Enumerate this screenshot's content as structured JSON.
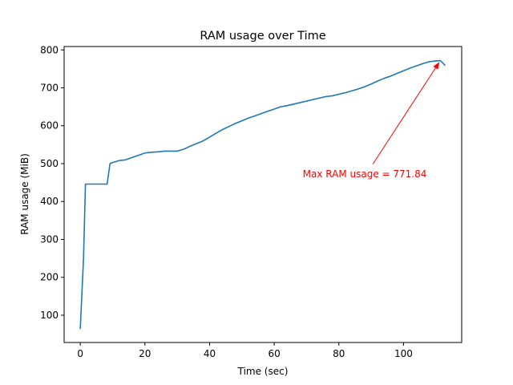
{
  "chart_data": {
    "type": "line",
    "title": "RAM usage over Time",
    "xlabel": "Time (sec)",
    "ylabel": "RAM usage (MiB)",
    "xlim": [
      -5,
      118
    ],
    "ylim": [
      28,
      809
    ],
    "x_ticks": [
      0,
      20,
      40,
      60,
      80,
      100
    ],
    "y_ticks": [
      100,
      200,
      300,
      400,
      500,
      600,
      700,
      800
    ],
    "grid": false,
    "series": [
      {
        "color": "#1f77b4",
        "x": [
          0,
          1,
          1.6,
          3,
          5,
          7,
          8.3,
          9.2,
          10,
          12,
          14,
          16,
          18,
          20,
          22,
          24,
          26,
          28,
          30,
          32,
          34,
          36,
          38,
          40,
          42,
          44,
          46,
          48,
          50,
          52,
          54,
          56,
          58,
          60,
          62,
          64,
          66,
          68,
          70,
          72,
          74,
          76,
          78,
          80,
          82,
          84,
          86,
          88,
          90,
          92,
          94,
          96,
          98,
          100,
          102,
          104,
          106,
          108,
          110,
          111.4,
          112.8
        ],
        "y": [
          65,
          250,
          446,
          446,
          446,
          446,
          446,
          500,
          503,
          508,
          510,
          516,
          522,
          528,
          530,
          531,
          533,
          533,
          533,
          538,
          546,
          553,
          560,
          570,
          580,
          590,
          598,
          606,
          613,
          620,
          626,
          632,
          638,
          644,
          650,
          653,
          657,
          661,
          665,
          669,
          673,
          677,
          679,
          683,
          687,
          692,
          697,
          703,
          710,
          718,
          725,
          731,
          738,
          745,
          752,
          758,
          764,
          769,
          771,
          771.84,
          760
        ]
      }
    ],
    "annotations": [
      {
        "text": "Max RAM usage = 771.84",
        "color": "#ff0000",
        "point": [
          111.4,
          771.84
        ],
        "text_position": [
          88,
          473
        ]
      }
    ]
  }
}
